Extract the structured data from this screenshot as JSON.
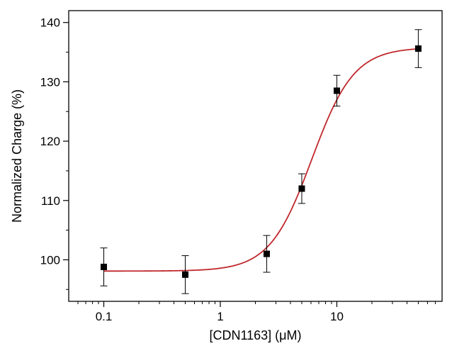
{
  "chart_data": {
    "type": "scatter",
    "title": "",
    "xlabel": "[CDN1163] (μM)",
    "ylabel": "Normalized Charge (%)",
    "x_scale": "log",
    "xlim": [
      0.05,
      80
    ],
    "ylim": [
      93,
      142
    ],
    "x_ticks": [
      0.1,
      1,
      10
    ],
    "x_tick_labels": [
      "0.1",
      "1",
      "10"
    ],
    "y_ticks": [
      100,
      110,
      120,
      130,
      140
    ],
    "y_tick_labels": [
      "100",
      "110",
      "120",
      "130",
      "140"
    ],
    "grid": false,
    "legend": "none",
    "series": [
      {
        "x": [
          0.1,
          0.5,
          2.5,
          5,
          10,
          50
        ],
        "y": [
          98.8,
          97.5,
          101.0,
          112.0,
          128.5,
          135.6
        ],
        "y_err": [
          3.2,
          3.2,
          3.1,
          2.5,
          2.6,
          3.2
        ],
        "marker": "square",
        "color": "#000000"
      }
    ],
    "fit_curve": {
      "type": "sigmoid",
      "bottom": 98.1,
      "top": 135.8,
      "x50": 6.1,
      "hill_slope": 2.4,
      "color": "#c0282c"
    }
  }
}
